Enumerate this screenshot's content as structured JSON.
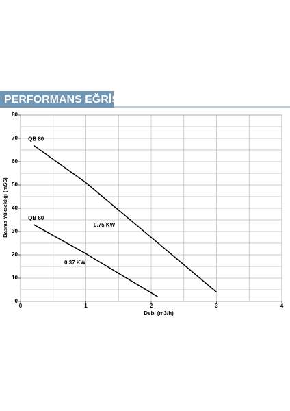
{
  "chart_data": {
    "type": "line",
    "title": "PERFORMANS EĞRİSİ",
    "x_label": "Debi (m3/h)",
    "y_label": "Basma Yüksekliği (mSS)",
    "xlim": [
      0,
      4
    ],
    "ylim": [
      0,
      80
    ],
    "xticks": [
      0,
      1,
      2,
      3,
      4
    ],
    "yticks": [
      0,
      10,
      20,
      30,
      40,
      50,
      60,
      70,
      80
    ],
    "xgrid": [
      0,
      0.5,
      1,
      1.5,
      2,
      2.5,
      3,
      3.5,
      4
    ],
    "ygrid": [
      0,
      5,
      10,
      15,
      20,
      25,
      30,
      35,
      40,
      45,
      50,
      55,
      60,
      65,
      70,
      75,
      80
    ],
    "grid": true,
    "series": [
      {
        "name": "QB 80",
        "label": "0.75 KW",
        "color": "#000000",
        "x": [
          0.2,
          1,
          3
        ],
        "values": [
          67,
          51,
          4
        ]
      },
      {
        "name": "QB 60",
        "label": "0.37 KW",
        "color": "#000000",
        "x": [
          0.2,
          1,
          2.1
        ],
        "values": [
          33,
          20.5,
          2
        ]
      }
    ]
  }
}
